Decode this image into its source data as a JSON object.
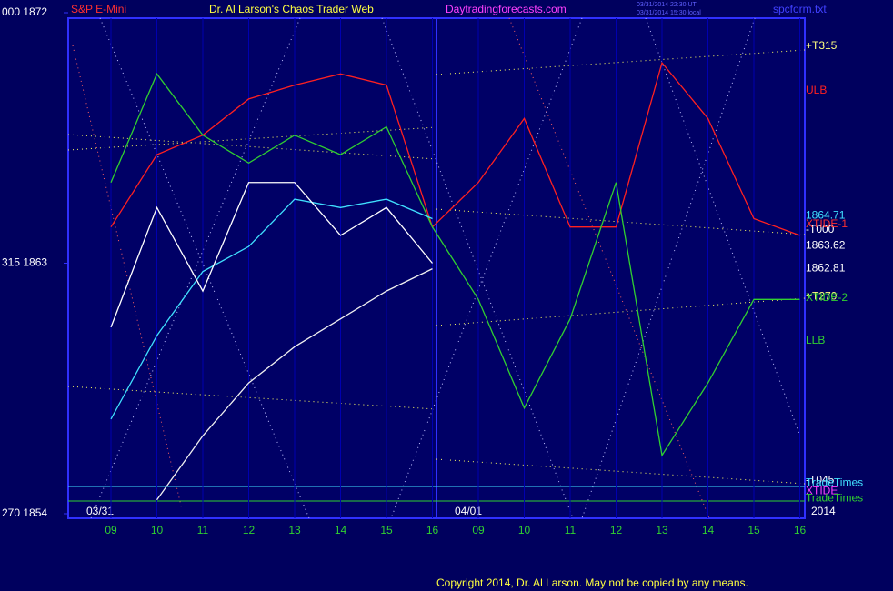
{
  "chart_data": {
    "type": "line",
    "header": {
      "instrument": "S&P E-Mini",
      "title": "Dr. Al Larson's Chaos Trader Web",
      "site": "Daytradingforecasts.com",
      "stamp1": "03/31/2014 22:30 UT",
      "stamp2": "03/31/2014 15:30 local",
      "file": "spcform.txt"
    },
    "categories": [
      "09",
      "10",
      "11",
      "12",
      "13",
      "14",
      "15",
      "16",
      "09",
      "10",
      "11",
      "12",
      "13",
      "14",
      "15",
      "16"
    ],
    "dates": [
      "03/31",
      "04/01"
    ],
    "year": "2014",
    "ylim": [
      1854,
      1872
    ],
    "yticks": [
      {
        "value": 1872,
        "label": "000  1872"
      },
      {
        "value": 1863,
        "label": "315  1863"
      },
      {
        "value": 1854,
        "label": "270  1854"
      }
    ],
    "series": [
      {
        "color": "#ff2020",
        "name": "ULB",
        "values": [
          1864.3,
          1866.9,
          1867.6,
          1868.9,
          1869.4,
          1869.8,
          1869.4,
          1864.3,
          1865.9,
          1868.2,
          1864.3,
          1864.3,
          1870.2,
          1868.2,
          1864.6,
          1864
        ]
      },
      {
        "color": "#30d030",
        "name": "LLB",
        "values": [
          1865.9,
          1869.8,
          1867.6,
          1866.6,
          1867.6,
          1866.9,
          1867.9,
          1864.3,
          1861.7,
          1857.8,
          1861,
          1865.9,
          1856.1,
          1858.7,
          1861.7,
          1861.7
        ]
      },
      {
        "color": "#40e0ff",
        "values": [
          1857.4,
          1860.4,
          1862.7,
          1863.6,
          1865.3,
          1865,
          1865.3,
          1864.6,
          null,
          null,
          null,
          null,
          null,
          null,
          null,
          null
        ]
      },
      {
        "color": "#ffffff",
        "values": [
          1860.7,
          1865,
          1862,
          1865.9,
          1865.9,
          1864,
          1865,
          1863,
          null,
          null,
          null,
          null,
          null,
          null,
          null,
          null
        ]
      },
      {
        "color": "#f0f0f0",
        "values": [
          null,
          1854.5,
          1856.8,
          1858.7,
          1860,
          1861,
          1862,
          1862.8,
          null,
          null,
          null,
          null,
          null,
          null,
          null,
          null
        ]
      }
    ],
    "annotations": [
      {
        "text": "+T315",
        "color": "#ffff80",
        "value": 1870.8
      },
      {
        "text": "1864.71",
        "color": "#40e0ff",
        "value": 1864.71
      },
      {
        "text": "-T000",
        "color": "#ffffff",
        "value": 1864.2
      },
      {
        "text": "XTIDE-1",
        "color": "#ff3030",
        "value": 1864.4
      },
      {
        "text": "1863.62",
        "color": "#ffffff",
        "value": 1863.62
      },
      {
        "text": "1862.81",
        "color": "#ffffff",
        "value": 1862.81
      },
      {
        "text": "+T270",
        "color": "#ffff80",
        "value": 1861.8
      },
      {
        "text": "XTIDE-2",
        "color": "#30d030",
        "value": 1861.75
      },
      {
        "text": "-T045",
        "color": "#ffffff",
        "value": 1855.2
      },
      {
        "text": "TradeTimes",
        "color": "#40e0ff",
        "value": 1855.1
      },
      {
        "text": "XTIDE",
        "color": "#ff40ff",
        "value": 1854.8
      },
      {
        "text": "TradeTimes",
        "color": "#30d030",
        "value": 1854.55
      }
    ],
    "copyright": "Copyright 2014, Dr. Al Larson. May not be copied by any means."
  }
}
